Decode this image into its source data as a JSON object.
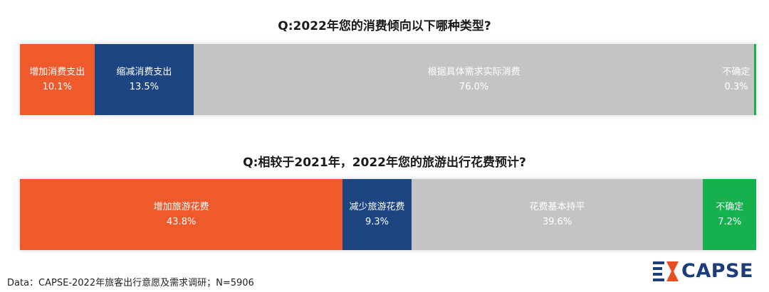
{
  "chart_data": [
    {
      "type": "bar",
      "stacked": true,
      "orientation": "horizontal",
      "title": "Q:2022年您的消费倾向以下哪种类型?",
      "unit": "%",
      "segments": [
        {
          "label": "增加消费支出",
          "value": 10.1,
          "value_label": "10.1%",
          "color": "#ee5a2c"
        },
        {
          "label": "缩减消费支出",
          "value": 13.5,
          "value_label": "13.5%",
          "color": "#1c4582"
        },
        {
          "label": "根据具体需求实际消费",
          "value": 76.0,
          "value_label": "76.0%",
          "color": "#c4c4c6"
        },
        {
          "label": "不确定",
          "value": 0.3,
          "value_label": "0.3%",
          "color": "#14b14d"
        }
      ]
    },
    {
      "type": "bar",
      "stacked": true,
      "orientation": "horizontal",
      "title": "Q:相较于2021年，2022年您的旅游出行花费预计?",
      "unit": "%",
      "segments": [
        {
          "label": "增加旅游花费",
          "value": 43.8,
          "value_label": "43.8%",
          "color": "#ee5a2c"
        },
        {
          "label": "减少旅游花费",
          "value": 9.3,
          "value_label": "9.3%",
          "color": "#1c4582"
        },
        {
          "label": "花费基本持平",
          "value": 39.6,
          "value_label": "39.6%",
          "color": "#c4c4c6"
        },
        {
          "label": "不确定",
          "value": 7.2,
          "value_label": "7.2%",
          "color": "#14b14d"
        }
      ]
    }
  ],
  "source_note": "Data：CAPSE-2022年旅客出行意愿及需求调研；N=5906",
  "logo": {
    "text": "CAPSE",
    "icon": "capse-logo-icon",
    "colors": {
      "primary": "#1c3d79",
      "accent": "#e84c22"
    }
  }
}
